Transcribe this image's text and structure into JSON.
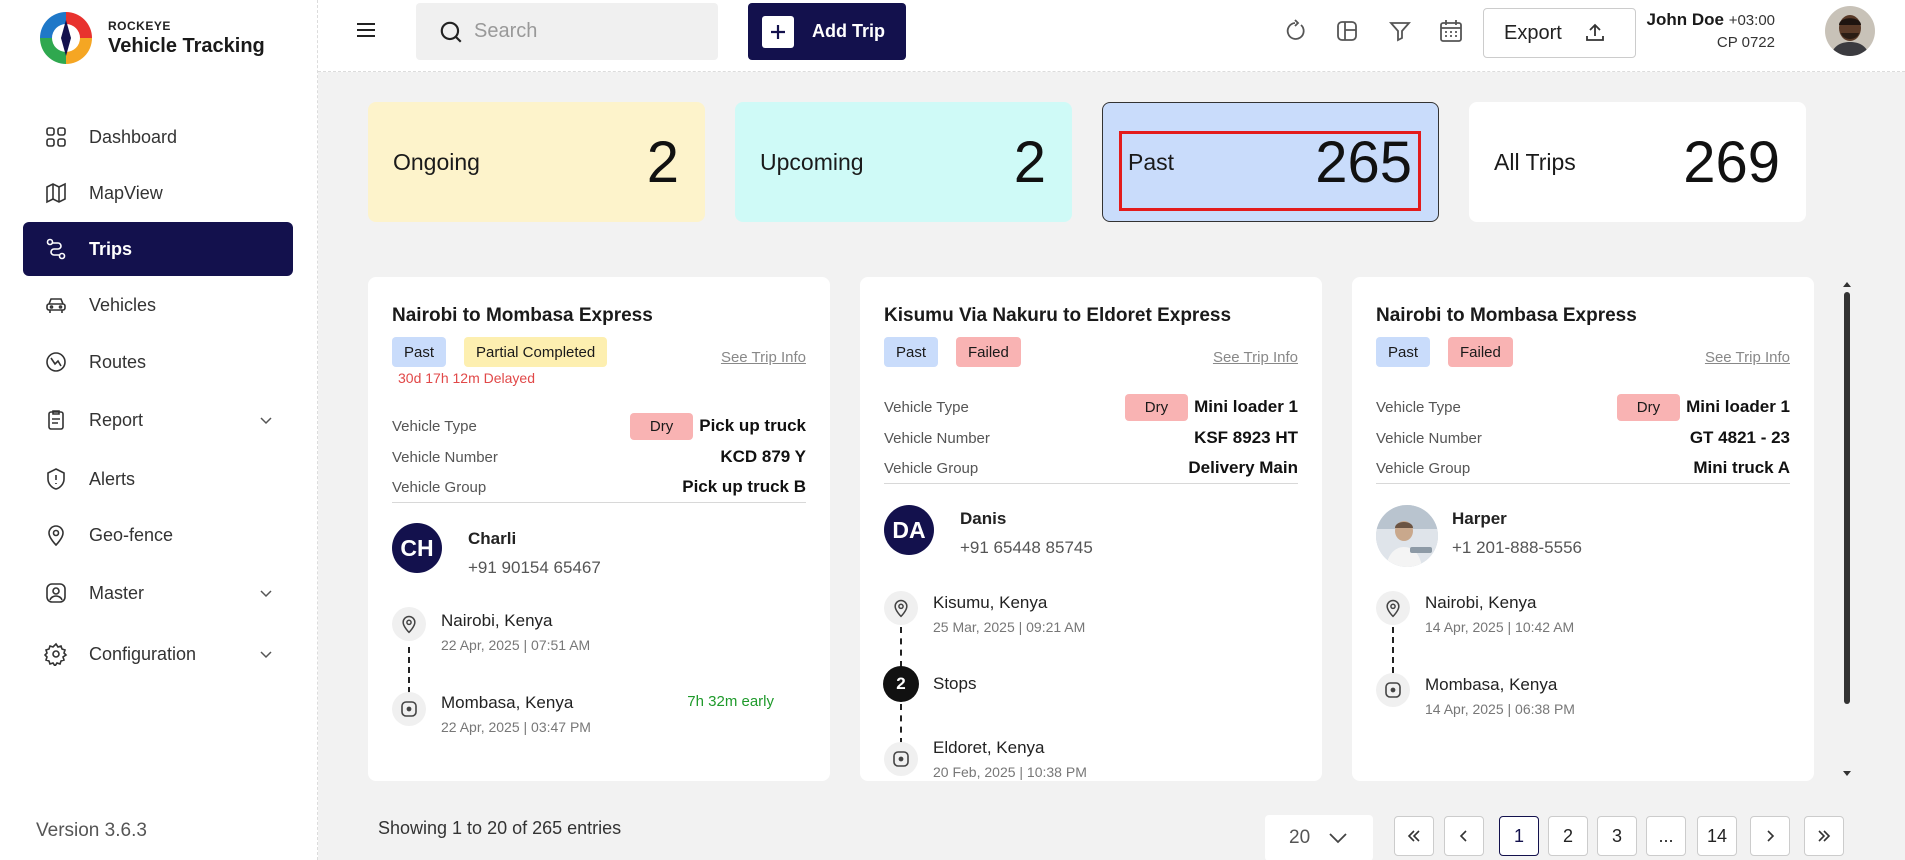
{
  "brand": {
    "subtitle": "ROCKEYE",
    "title": "Vehicle Tracking"
  },
  "sidebar": {
    "items": [
      {
        "label": "Dashboard"
      },
      {
        "label": "MapView"
      },
      {
        "label": "Trips"
      },
      {
        "label": "Vehicles"
      },
      {
        "label": "Routes"
      },
      {
        "label": "Report"
      },
      {
        "label": "Alerts"
      },
      {
        "label": "Geo-fence"
      },
      {
        "label": "Master"
      },
      {
        "label": "Configuration"
      }
    ],
    "version": "Version 3.6.3"
  },
  "topbar": {
    "search_placeholder": "Search",
    "add_trip_label": "Add Trip",
    "export_label": "Export",
    "user_name": "John Doe",
    "user_tz": "+03:00",
    "user_id": "CP 0722"
  },
  "stats": {
    "ongoing": {
      "label": "Ongoing",
      "value": "2"
    },
    "upcoming": {
      "label": "Upcoming",
      "value": "2"
    },
    "past": {
      "label": "Past",
      "value": "265"
    },
    "all": {
      "label": "All Trips",
      "value": "269"
    }
  },
  "trip_labels": {
    "vehicle_type": "Vehicle Type",
    "vehicle_number": "Vehicle Number",
    "vehicle_group": "Vehicle Group",
    "see_info": "See Trip Info",
    "stops": "Stops"
  },
  "trips": [
    {
      "title": "Nairobi to Mombasa Express",
      "status": "Past",
      "result": "Partial Completed",
      "delay": "30d 17h 12m Delayed",
      "cargo": "Dry",
      "vehicle_type": "Pick up truck",
      "vehicle_number": "KCD 879 Y",
      "vehicle_group": "Pick up truck B",
      "driver_initials": "CH",
      "driver_name": "Charli",
      "driver_phone": "+91 90154 65467",
      "from": "Nairobi, Kenya",
      "from_time": "22 Apr, 2025 | 07:51 AM",
      "to": "Mombasa, Kenya",
      "to_time": "22 Apr, 2025 | 03:47 PM",
      "note": "7h 32m early"
    },
    {
      "title": "Kisumu Via Nakuru to Eldoret Express",
      "status": "Past",
      "result": "Failed",
      "cargo": "Dry",
      "vehicle_type": "Mini loader 1",
      "vehicle_number": "KSF 8923 HT",
      "vehicle_group": "Delivery Main",
      "driver_initials": "DA",
      "driver_name": "Danis",
      "driver_phone": "+91 65448 85745",
      "from": "Kisumu, Kenya",
      "from_time": "25 Mar, 2025 | 09:21 AM",
      "stops_count": "2",
      "to": "Eldoret, Kenya",
      "to_time": "20 Feb, 2025 | 10:38 PM"
    },
    {
      "title": "Nairobi to Mombasa Express",
      "status": "Past",
      "result": "Failed",
      "cargo": "Dry",
      "vehicle_type": "Mini loader 1",
      "vehicle_number": "GT 4821 - 23",
      "vehicle_group": "Mini truck A",
      "driver_name": "Harper",
      "driver_phone": "+1 201-888-5556",
      "from": "Nairobi, Kenya",
      "from_time": "14 Apr, 2025 | 10:42 AM",
      "to": "Mombasa, Kenya",
      "to_time": "14 Apr, 2025 | 06:38 PM"
    }
  ],
  "footer": {
    "showing": "Showing 1 to 20 of 265 entries",
    "per_page": "20",
    "pages": [
      "1",
      "2",
      "3",
      "...",
      "14"
    ]
  },
  "colors": {
    "brand_navy": "#13114d",
    "ongoing_bg": "#fdf3cb",
    "upcoming_bg": "#cffaf7",
    "past_bg": "#c9dcfb",
    "failed_bg": "#f9b3b3",
    "highlight_red": "#e31b1b",
    "early_green": "#1f9a2b"
  }
}
